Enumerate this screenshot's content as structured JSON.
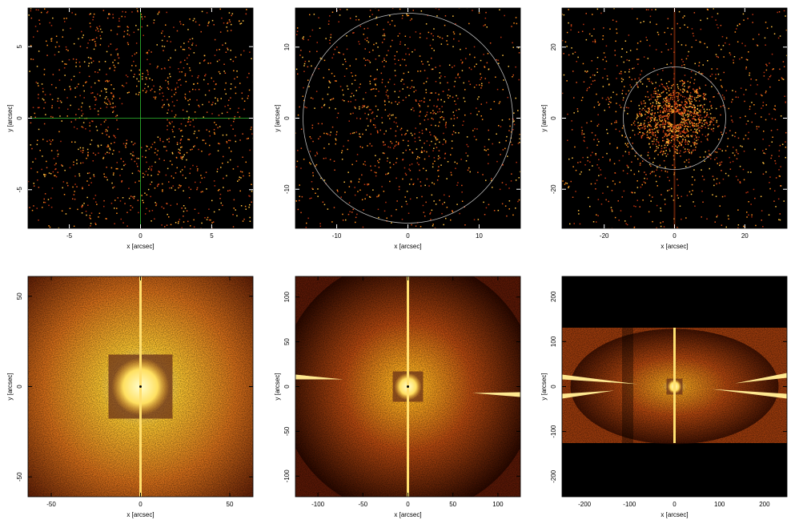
{
  "chart_data": [
    {
      "type": "image",
      "xlabel": "x [arcsec]",
      "ylabel": "y [arcsec]",
      "xlim": [
        -7.9,
        7.9
      ],
      "ylim": [
        -7.7,
        7.7
      ],
      "xticks": [
        -5,
        0,
        5
      ],
      "yticks": [
        -5,
        0,
        5
      ]
    },
    {
      "type": "image",
      "xlabel": "x [arcsec]",
      "ylabel": "y [arcsec]",
      "xlim": [
        -15.8,
        15.8
      ],
      "ylim": [
        -15.5,
        15.5
      ],
      "xticks": [
        -10,
        0,
        10
      ],
      "yticks": [
        -10,
        0,
        10
      ]
    },
    {
      "type": "image",
      "xlabel": "x [arcsec]",
      "ylabel": "y [arcsec]",
      "xlim": [
        -32,
        32
      ],
      "ylim": [
        -31,
        31
      ],
      "xticks": [
        -20,
        0,
        20
      ],
      "yticks": [
        -20,
        0,
        20
      ]
    },
    {
      "type": "image",
      "xlabel": "x [arcsec]",
      "ylabel": "y [arcsec]",
      "xlim": [
        -63,
        63
      ],
      "ylim": [
        -61,
        61
      ],
      "xticks": [
        -50,
        0,
        50
      ],
      "yticks": [
        -50,
        0,
        50
      ]
    },
    {
      "type": "image",
      "xlabel": "x [arcsec]",
      "ylabel": "y [arcsec]",
      "xlim": [
        -125,
        125
      ],
      "ylim": [
        -123,
        123
      ],
      "xticks": [
        -100,
        -50,
        0,
        50,
        100
      ],
      "yticks": [
        -100,
        -50,
        0,
        50,
        100
      ]
    },
    {
      "type": "image",
      "xlabel": "x [arcsec]",
      "ylabel": "y [arcsec]",
      "xlim": [
        -250,
        250
      ],
      "ylim": [
        -245,
        245
      ],
      "xticks": [
        -200,
        -100,
        0,
        100,
        200
      ],
      "yticks": [
        -200,
        -100,
        0,
        100,
        200
      ]
    }
  ]
}
